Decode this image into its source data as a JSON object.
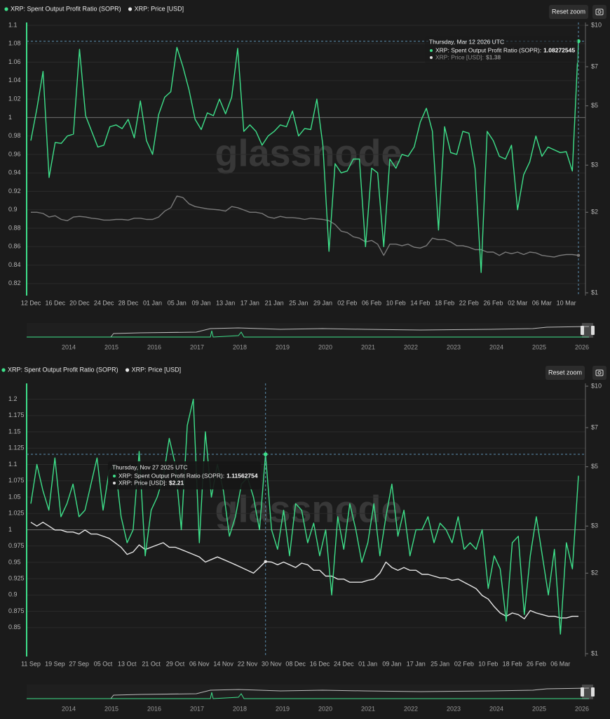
{
  "chart_data": [
    {
      "type": "line",
      "legend": "top-left",
      "button": "Reset zoom",
      "watermark": "glassnode",
      "baseline": 1,
      "hover_index": 90,
      "tooltip": {
        "date": "Thursday, Mar 12 2026 UTC",
        "lines": [
          {
            "label": "XRP: Spent Output Profit Ratio (SOPR):",
            "value": "1.08272545"
          },
          {
            "label": "XRP: Price [USD]:",
            "value": "$1.38"
          }
        ]
      },
      "categories": [
        "12 Dec",
        null,
        null,
        null,
        "16 Dec",
        null,
        null,
        null,
        "20 Dec",
        null,
        null,
        null,
        "24 Dec",
        null,
        null,
        null,
        "28 Dec",
        null,
        null,
        null,
        "01 Jan",
        null,
        null,
        null,
        "05 Jan",
        null,
        null,
        null,
        "09 Jan",
        null,
        null,
        null,
        "13 Jan",
        null,
        null,
        null,
        "17 Jan",
        null,
        null,
        null,
        "21 Jan",
        null,
        null,
        null,
        "25 Jan",
        null,
        null,
        null,
        "29 Jan",
        null,
        null,
        null,
        "02 Feb",
        null,
        null,
        null,
        "06 Feb",
        null,
        null,
        null,
        "10 Feb",
        null,
        null,
        null,
        "14 Feb",
        null,
        null,
        null,
        "18 Feb",
        null,
        null,
        null,
        "22 Feb",
        null,
        null,
        null,
        "26 Feb",
        null,
        null,
        null,
        "02 Mar",
        null,
        null,
        null,
        "06 Mar",
        null,
        null,
        null,
        "10 Mar",
        null,
        null
      ],
      "series": [
        {
          "name": "XRP: Spent Output Profit Ratio (SOPR)",
          "color": "#3ee08a",
          "values": [
            0.975,
            1.01,
            1.05,
            0.935,
            0.973,
            0.972,
            0.98,
            0.982,
            1.074,
            1.002,
            0.985,
            0.968,
            0.97,
            0.99,
            0.992,
            0.988,
            0.998,
            0.978,
            1.018,
            0.975,
            0.96,
            1.003,
            1.022,
            1.028,
            1.076,
            1.055,
            1.03,
            0.998,
            0.987,
            1.005,
            1.002,
            1.02,
            1.004,
            1.022,
            1.075,
            0.985,
            0.992,
            0.985,
            0.97,
            0.98,
            0.985,
            0.992,
            0.99,
            1.007,
            0.98,
            0.988,
            0.987,
            1.02,
            0.97,
            0.855,
            0.95,
            0.94,
            0.942,
            0.955,
            0.955,
            0.86,
            0.945,
            0.94,
            0.86,
            0.955,
            0.945,
            0.96,
            0.958,
            0.968,
            0.995,
            1.01,
            0.985,
            0.878,
            0.99,
            0.962,
            0.96,
            0.985,
            0.983,
            0.945,
            0.832,
            0.985,
            0.975,
            0.958,
            0.955,
            0.97,
            0.9,
            0.938,
            0.952,
            0.98,
            0.958,
            0.968,
            0.965,
            0.962,
            0.963,
            0.942,
            1.08272545
          ]
        },
        {
          "name": "XRP: Price [USD]",
          "color": "#7a7a7a",
          "axis": "y2",
          "values": [
            2.0,
            2.0,
            1.98,
            1.92,
            1.94,
            1.88,
            1.86,
            1.92,
            1.93,
            1.92,
            1.9,
            1.89,
            1.87,
            1.87,
            1.88,
            1.88,
            1.87,
            1.9,
            1.9,
            1.88,
            1.88,
            1.92,
            2.02,
            2.08,
            2.3,
            2.27,
            2.15,
            2.1,
            2.08,
            2.06,
            2.05,
            2.04,
            2.02,
            2.1,
            2.08,
            2.04,
            2.0,
            2.0,
            1.98,
            1.92,
            1.9,
            1.93,
            1.91,
            1.91,
            1.9,
            1.88,
            1.9,
            1.89,
            1.88,
            1.86,
            1.8,
            1.7,
            1.68,
            1.62,
            1.6,
            1.55,
            1.57,
            1.52,
            1.38,
            1.52,
            1.52,
            1.5,
            1.52,
            1.48,
            1.47,
            1.5,
            1.6,
            1.58,
            1.58,
            1.55,
            1.5,
            1.5,
            1.48,
            1.45,
            1.45,
            1.42,
            1.42,
            1.38,
            1.42,
            1.4,
            1.42,
            1.39,
            1.42,
            1.41,
            1.38,
            1.37,
            1.36,
            1.38,
            1.39,
            1.39,
            1.38
          ]
        }
      ],
      "ylim": [
        0.81,
        1.1
      ],
      "yticks": [
        0.82,
        0.84,
        0.86,
        0.88,
        0.9,
        0.92,
        0.94,
        0.96,
        0.98,
        1,
        1.02,
        1.04,
        1.06,
        1.08,
        1.1
      ],
      "y2lim": [
        1,
        10
      ],
      "y2log": true,
      "y2ticks": [
        {
          "value": 1,
          "label": "$1"
        },
        {
          "value": 2,
          "label": "$2"
        },
        {
          "value": 3,
          "label": "$3"
        },
        {
          "value": 5,
          "label": "$5"
        },
        {
          "value": 7,
          "label": "$7"
        },
        {
          "value": 10,
          "label": "$10"
        }
      ],
      "grid": true,
      "navigator_years": [
        2014,
        2015,
        2016,
        2017,
        2018,
        2019,
        2020,
        2021,
        2022,
        2023,
        2024,
        2025,
        2026
      ]
    },
    {
      "type": "line",
      "legend": "top-left",
      "button": "Reset zoom",
      "watermark": "glassnode",
      "baseline": 1,
      "hover_index": 39,
      "tooltip": {
        "date": "Thursday, Nov 27 2025 UTC",
        "lines": [
          {
            "label": "XRP: Spent Output Profit Ratio (SOPR):",
            "value": "1.11562754"
          },
          {
            "label": "XRP: Price [USD]:",
            "value": "$2.21"
          }
        ]
      },
      "categories": [
        "11 Sep",
        null,
        null,
        null,
        "19 Sep",
        null,
        null,
        null,
        "27 Sep",
        null,
        null,
        null,
        "05 Oct",
        null,
        null,
        null,
        "13 Oct",
        null,
        null,
        null,
        "21 Oct",
        null,
        null,
        null,
        "29 Oct",
        null,
        null,
        null,
        "06 Nov",
        null,
        null,
        null,
        "14 Nov",
        null,
        null,
        null,
        "22 Nov",
        null,
        null,
        null,
        "30 Nov",
        null,
        null,
        null,
        "08 Dec",
        null,
        null,
        null,
        "16 Dec",
        null,
        null,
        null,
        "24 Dec",
        null,
        null,
        null,
        "01 Jan",
        null,
        null,
        null,
        "09 Jan",
        null,
        null,
        null,
        "17 Jan",
        null,
        null,
        null,
        "25 Jan",
        null,
        null,
        null,
        "02 Feb",
        null,
        null,
        null,
        "10 Feb",
        null,
        null,
        null,
        "18 Feb",
        null,
        null,
        null,
        "26 Feb",
        null,
        null,
        null,
        "06 Mar",
        null,
        null,
        null
      ],
      "series": [
        {
          "name": "XRP: Spent Output Profit Ratio (SOPR)",
          "color": "#3ee08a",
          "values": [
            1.04,
            1.1,
            1.06,
            1.03,
            1.11,
            1.02,
            1.04,
            1.07,
            1.02,
            1.03,
            1.07,
            1.11,
            1.03,
            1.09,
            1.1,
            1.02,
            0.98,
            1.0,
            1.12,
            0.96,
            1.03,
            1.05,
            1.08,
            1.14,
            1.1,
            1.0,
            1.16,
            1.2,
            0.98,
            1.15,
            1.05,
            1.1,
            1.06,
            0.99,
            1.02,
            1.07,
            1.08,
            1.05,
            1.0,
            1.11562754,
            1.0,
            0.97,
            1.03,
            0.96,
            1.04,
            1.03,
            0.98,
            1.01,
            0.96,
            1.0,
            0.9,
            1.02,
            0.97,
            1.04,
            1.0,
            0.95,
            0.98,
            1.04,
            0.96,
            1.02,
            1.07,
            0.99,
            1.03,
            0.96,
            1.0,
            1.0,
            1.02,
            0.98,
            1.01,
            1.0,
            0.98,
            1.02,
            0.97,
            0.98,
            0.97,
            1.0,
            0.91,
            0.96,
            0.94,
            0.86,
            0.98,
            0.99,
            0.87,
            0.96,
            1.02,
            0.96,
            0.9,
            0.97,
            0.84,
            0.98,
            0.94,
            1.08272545
          ]
        },
        {
          "name": "XRP: Price [USD]",
          "color": "#e6e6e6",
          "axis": "y2",
          "values": [
            3.1,
            3.0,
            3.1,
            3.0,
            2.9,
            2.9,
            2.85,
            2.85,
            2.8,
            2.9,
            2.8,
            2.8,
            2.75,
            2.7,
            2.6,
            2.5,
            2.35,
            2.4,
            2.55,
            2.45,
            2.5,
            2.55,
            2.6,
            2.5,
            2.5,
            2.45,
            2.4,
            2.35,
            2.3,
            2.2,
            2.25,
            2.3,
            2.25,
            2.2,
            2.15,
            2.1,
            2.05,
            2.0,
            2.1,
            2.21,
            2.2,
            2.15,
            2.2,
            2.15,
            2.1,
            2.18,
            2.15,
            2.05,
            2.05,
            1.95,
            1.95,
            1.9,
            1.9,
            1.85,
            1.85,
            1.85,
            1.88,
            1.9,
            2.0,
            2.2,
            2.1,
            2.05,
            2.1,
            2.05,
            2.05,
            1.98,
            1.98,
            1.95,
            1.92,
            1.92,
            1.88,
            1.9,
            1.85,
            1.8,
            1.75,
            1.65,
            1.6,
            1.5,
            1.42,
            1.38,
            1.42,
            1.4,
            1.35,
            1.45,
            1.42,
            1.4,
            1.38,
            1.38,
            1.36,
            1.36,
            1.38,
            1.38
          ]
        }
      ],
      "ylim": [
        0.81,
        1.22
      ],
      "yticks": [
        0.85,
        0.875,
        0.9,
        0.925,
        0.95,
        0.975,
        1,
        1.025,
        1.05,
        1.075,
        1.1,
        1.125,
        1.15,
        1.175,
        1.2
      ],
      "y2lim": [
        1,
        10
      ],
      "y2log": true,
      "y2ticks": [
        {
          "value": 1,
          "label": "$1"
        },
        {
          "value": 2,
          "label": "$2"
        },
        {
          "value": 3,
          "label": "$3"
        },
        {
          "value": 5,
          "label": "$5"
        },
        {
          "value": 7,
          "label": "$7"
        },
        {
          "value": 10,
          "label": "$10"
        }
      ],
      "grid": true,
      "navigator_years": [
        2014,
        2015,
        2016,
        2017,
        2018,
        2019,
        2020,
        2021,
        2022,
        2023,
        2024,
        2025,
        2026
      ]
    }
  ]
}
